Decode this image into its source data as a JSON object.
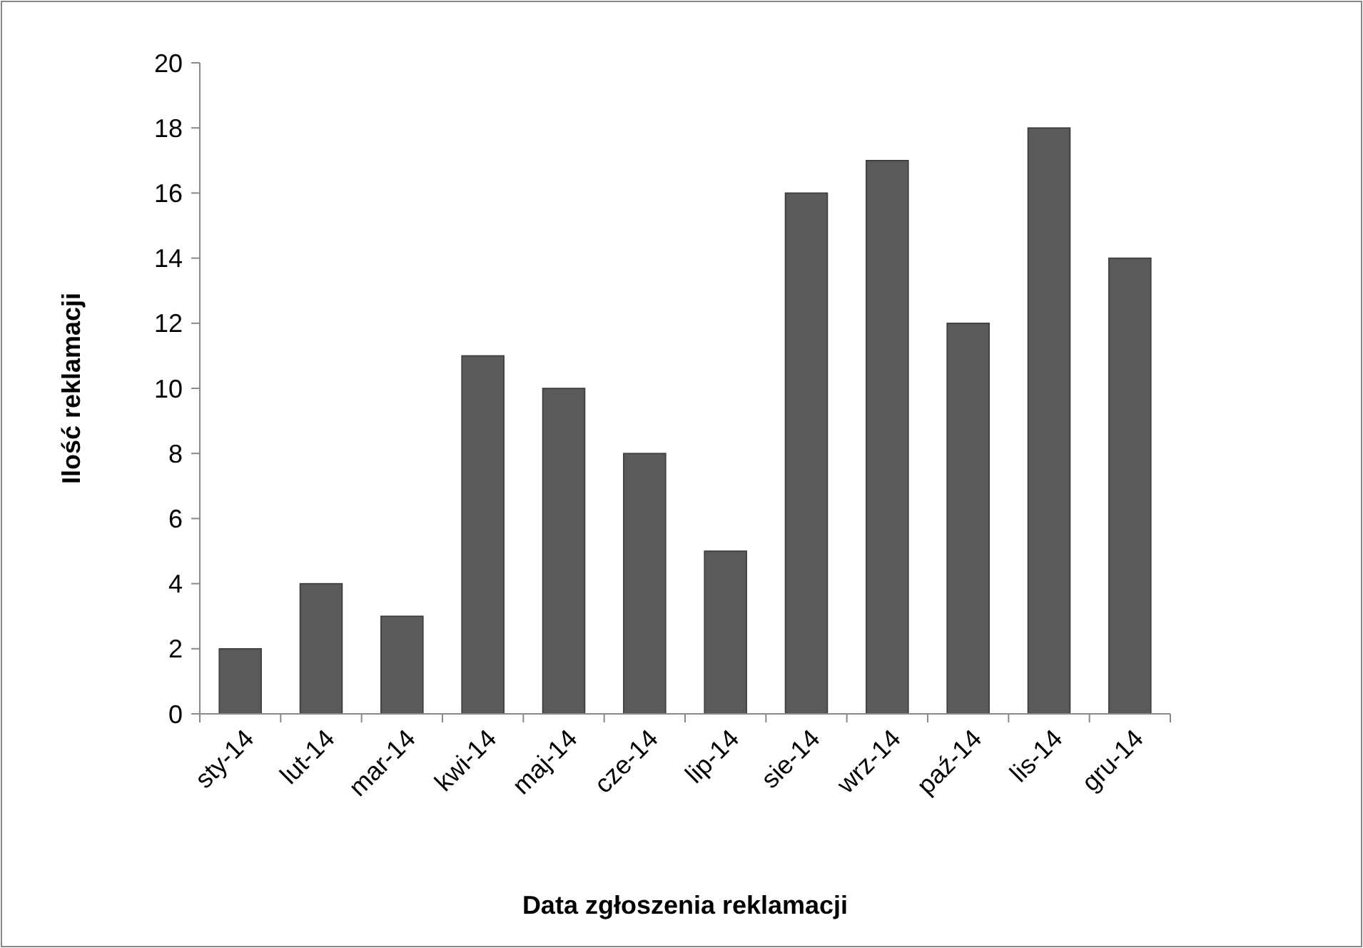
{
  "chart_data": {
    "type": "bar",
    "xlabel": "Data zgłoszenia reklamacji",
    "ylabel": "Ilość reklamacji",
    "categories": [
      "sty-14",
      "lut-14",
      "mar-14",
      "kwi-14",
      "maj-14",
      "cze-14",
      "lip-14",
      "sie-14",
      "wrz-14",
      "paź-14",
      "lis-14",
      "gru-14"
    ],
    "values": [
      2,
      4,
      3,
      11,
      10,
      8,
      5,
      16,
      17,
      12,
      18,
      14
    ],
    "color": "#5a5a5a",
    "ylim": [
      0,
      20
    ],
    "yticks": [
      0,
      2,
      4,
      6,
      8,
      10,
      12,
      14,
      16,
      18,
      20
    ],
    "grid": false
  }
}
